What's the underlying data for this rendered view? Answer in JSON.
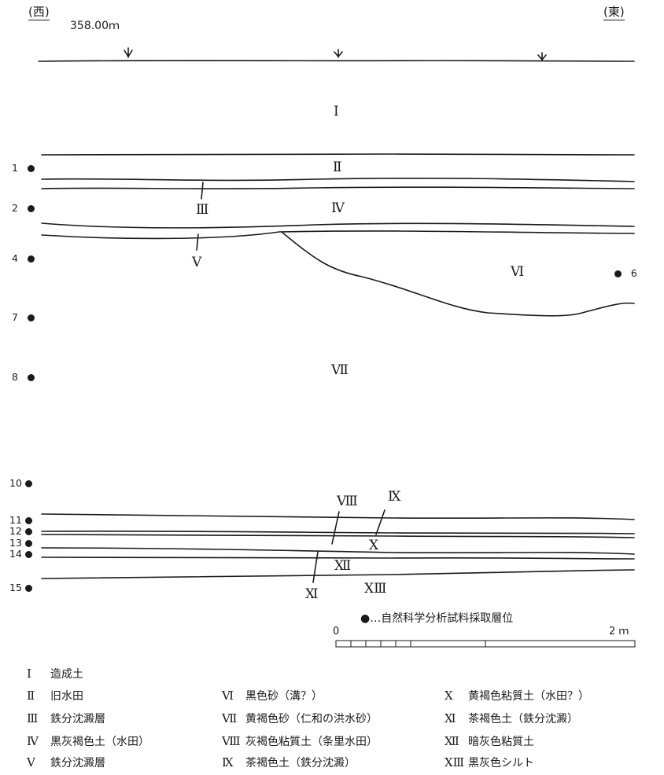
{
  "header": {
    "west": "(西)",
    "elevation": "358.00ｍ",
    "east": "(東)"
  },
  "samples": [
    {
      "id": "1",
      "dot": "left"
    },
    {
      "id": "2",
      "dot": "left"
    },
    {
      "id": "4",
      "dot": "left"
    },
    {
      "id": "6",
      "dot": "right"
    },
    {
      "id": "7",
      "dot": "left"
    },
    {
      "id": "8",
      "dot": "left"
    },
    {
      "id": "10",
      "dot": "left"
    },
    {
      "id": "11",
      "dot": "left"
    },
    {
      "id": "12",
      "dot": "left"
    },
    {
      "id": "13",
      "dot": "left"
    },
    {
      "id": "14",
      "dot": "left"
    },
    {
      "id": "15",
      "dot": "left"
    }
  ],
  "layer_labels": [
    "Ⅰ",
    "Ⅱ",
    "Ⅲ",
    "Ⅳ",
    "Ⅴ",
    "Ⅵ",
    "Ⅶ",
    "Ⅷ",
    "Ⅸ",
    "Ⅹ",
    "Ⅺ",
    "Ⅻ",
    "ⅩⅢ"
  ],
  "sample_legend": "●…自然科学分析試料採取層位",
  "scale": {
    "start": "0",
    "end": "2 ｍ"
  },
  "legend": [
    {
      "num": "Ⅰ",
      "text": "造成土"
    },
    {
      "num": "Ⅱ",
      "text": "旧水田"
    },
    {
      "num": "Ⅲ",
      "text": "鉄分沈澱層"
    },
    {
      "num": "Ⅳ",
      "text": "黒灰褐色土（水田）"
    },
    {
      "num": "Ⅴ",
      "text": "鉄分沈澱層"
    },
    {
      "num": "Ⅵ",
      "text": "黒色砂（溝？）"
    },
    {
      "num": "Ⅶ",
      "text": "黄褐色砂（仁和の洪水砂）"
    },
    {
      "num": "Ⅷ",
      "text": "灰褐色粘質土（条里水田）"
    },
    {
      "num": "Ⅸ",
      "text": "茶褐色土（鉄分沈澱）"
    },
    {
      "num": "Ⅹ",
      "text": "黄褐色粘質土（水田？）"
    },
    {
      "num": "Ⅺ",
      "text": "茶褐色土（鉄分沈澱）"
    },
    {
      "num": "Ⅻ",
      "text": "暗灰色粘質土"
    },
    {
      "num": "ⅩⅢ",
      "text": "黒灰色シルト"
    }
  ]
}
